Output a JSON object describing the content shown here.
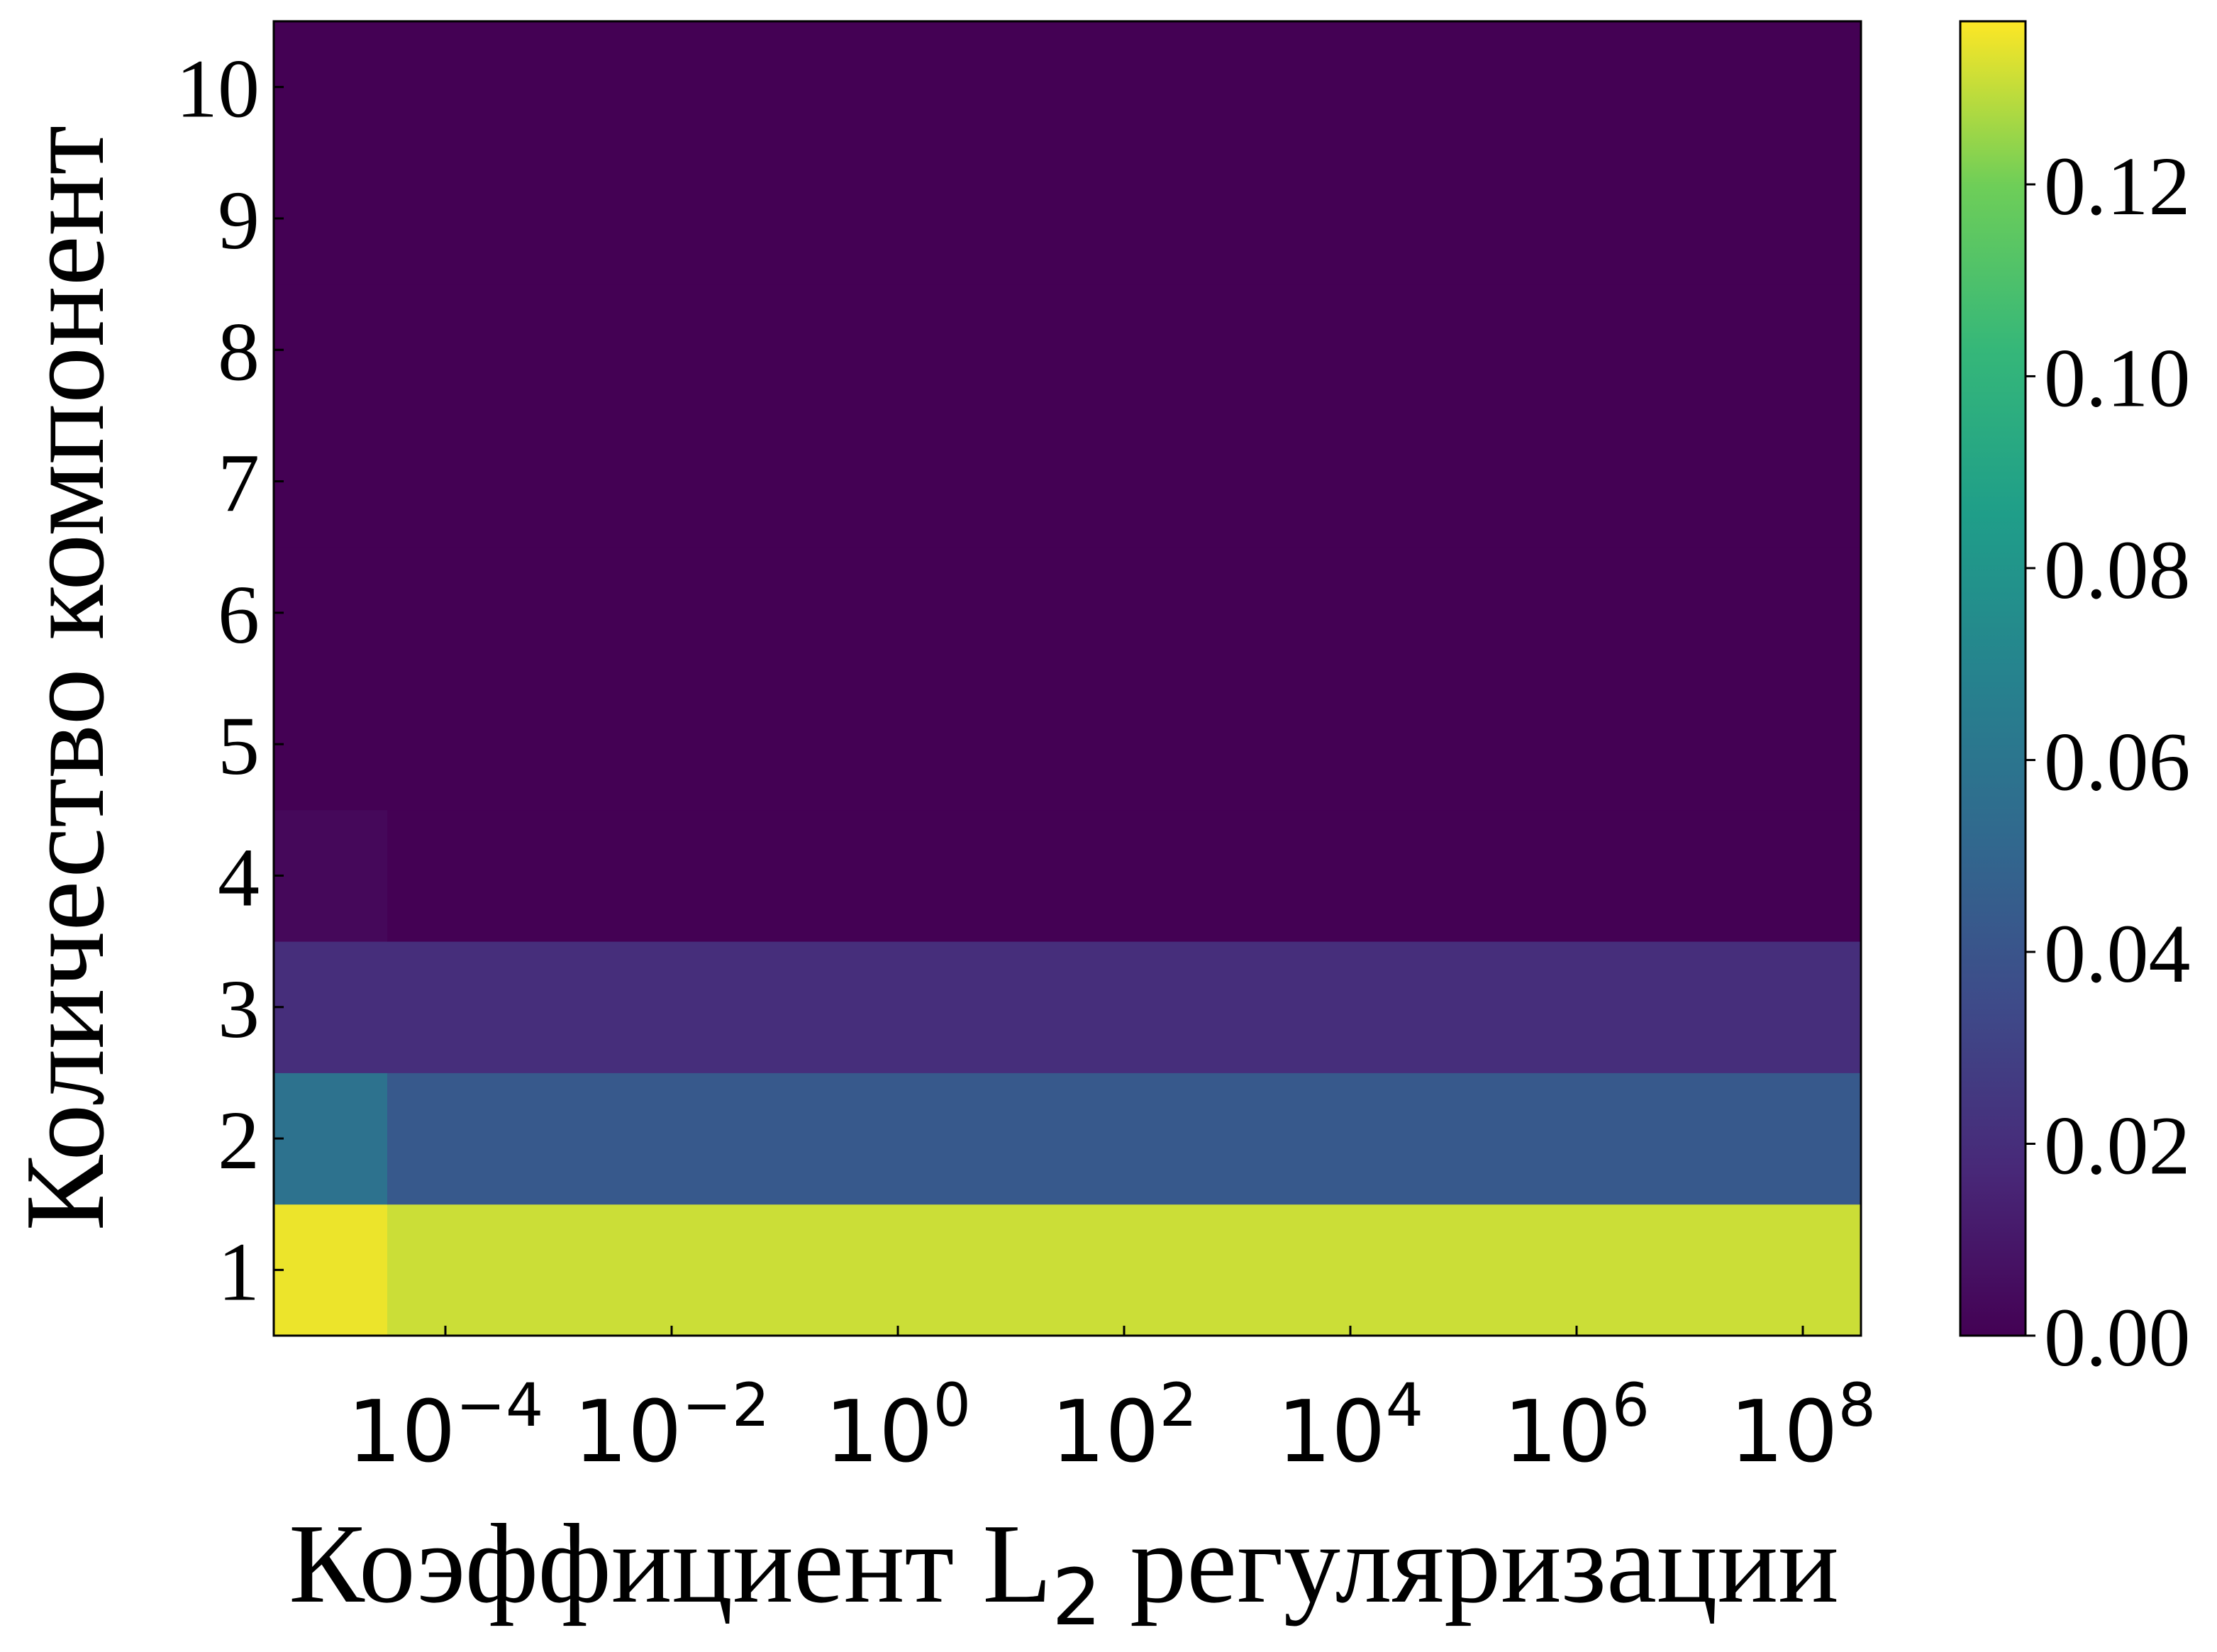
{
  "chart_data": {
    "type": "heatmap",
    "xlabel_main": "Коэффициент L",
    "xlabel_sub": "2",
    "xlabel_rest": " регуляризации",
    "ylabel": "Количество компонент",
    "x_scale": "log",
    "x_ticks": [
      {
        "base": "10",
        "exp": "−4",
        "value": 0.0001
      },
      {
        "base": "10",
        "exp": "−2",
        "value": 0.01
      },
      {
        "base": "10",
        "exp": "0",
        "value": 1
      },
      {
        "base": "10",
        "exp": "2",
        "value": 100
      },
      {
        "base": "10",
        "exp": "4",
        "value": 10000
      },
      {
        "base": "10",
        "exp": "6",
        "value": 1000000
      },
      {
        "base": "10",
        "exp": "8",
        "value": 100000000
      }
    ],
    "y_ticks": [
      "1",
      "2",
      "3",
      "4",
      "5",
      "6",
      "7",
      "8",
      "9",
      "10"
    ],
    "colorbar_ticks": [
      "0.00",
      "0.02",
      "0.04",
      "0.06",
      "0.08",
      "0.10",
      "0.12"
    ],
    "colorbar_range": [
      0.0,
      0.137
    ],
    "colormap": "viridis",
    "rows": [
      {
        "components": 1,
        "low_reg_value": 0.135,
        "value": 0.131
      },
      {
        "components": 2,
        "low_reg_value": 0.058,
        "value": 0.043
      },
      {
        "components": 3,
        "low_reg_value": 0.02,
        "value": 0.02
      },
      {
        "components": 4,
        "low_reg_value": 0.003,
        "value": 0.0
      },
      {
        "components": 5,
        "low_reg_value": 0.0,
        "value": 0.0
      },
      {
        "components": 6,
        "low_reg_value": 0.0,
        "value": 0.0
      },
      {
        "components": 7,
        "low_reg_value": 0.0,
        "value": 0.0
      },
      {
        "components": 8,
        "low_reg_value": 0.0,
        "value": 0.0
      },
      {
        "components": 9,
        "low_reg_value": 0.0,
        "value": 0.0
      },
      {
        "components": 10,
        "low_reg_value": 0.0,
        "value": 0.0
      }
    ],
    "colors": {
      "dark": "#440154",
      "yellow": "#fde725"
    }
  }
}
